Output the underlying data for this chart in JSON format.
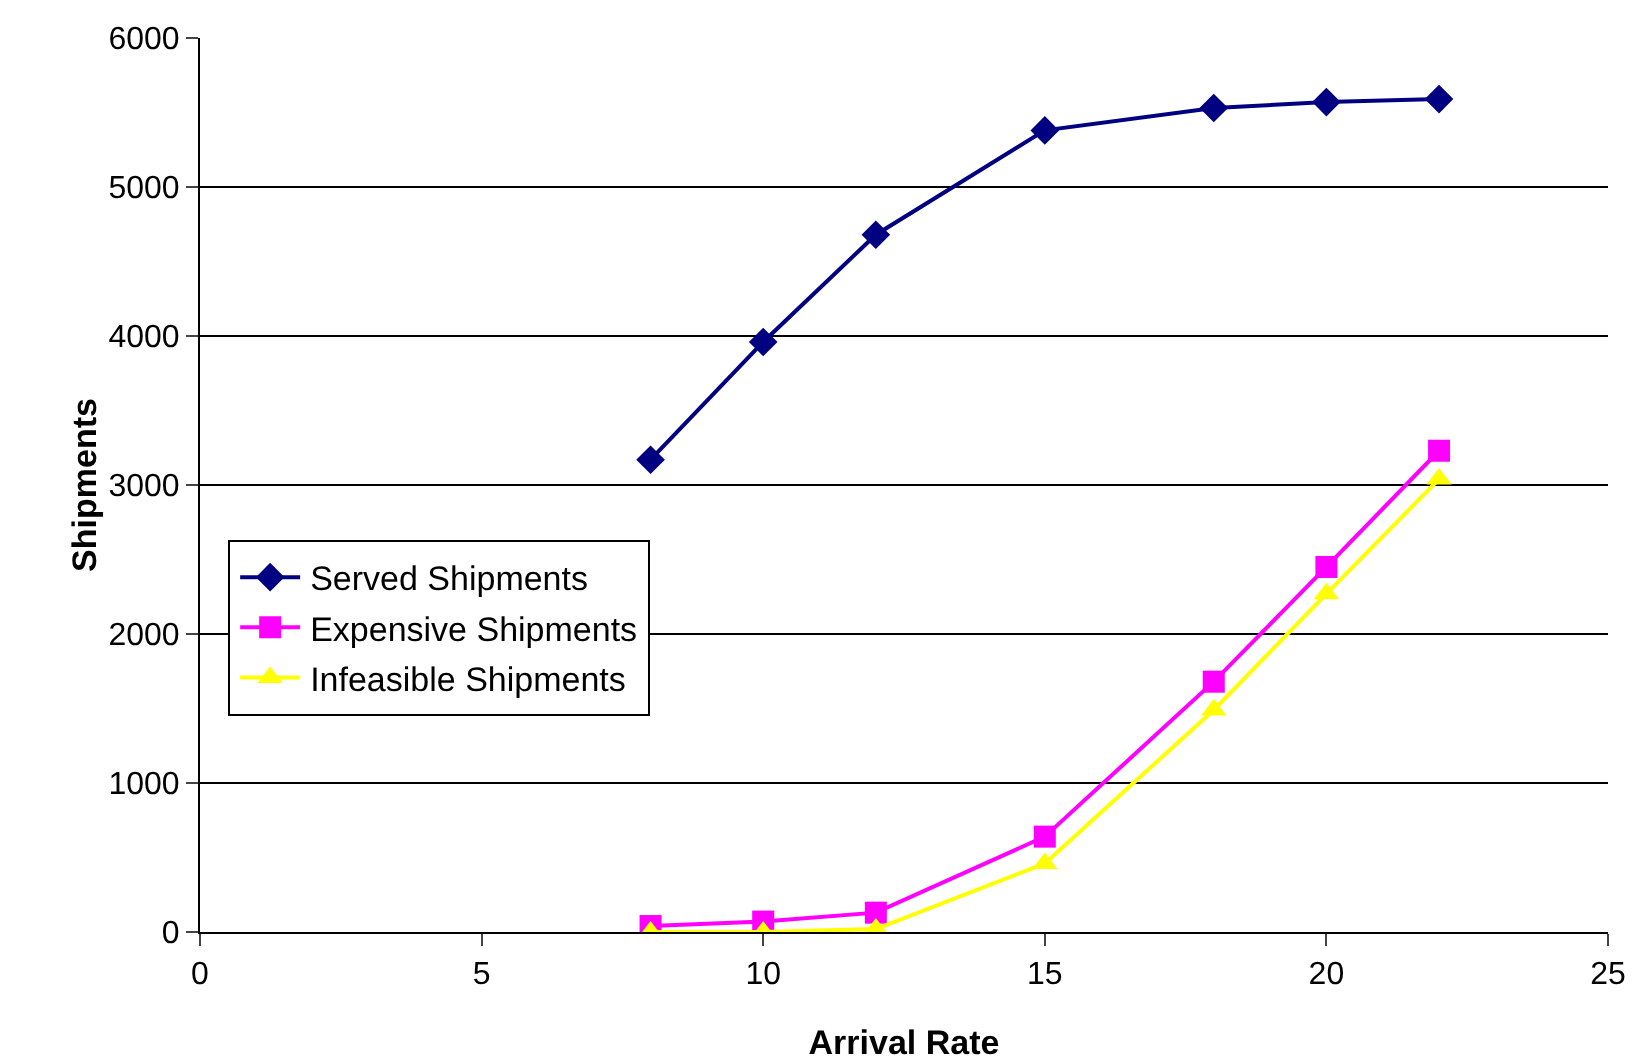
{
  "chart_data": {
    "type": "line",
    "xlabel": "Arrival Rate",
    "ylabel": "Shipments",
    "x": [
      8,
      10,
      12,
      15,
      18,
      20,
      22
    ],
    "series": [
      {
        "name": "Served Shipments",
        "color": "#000080",
        "marker": "diamond",
        "values": [
          3170,
          3960,
          4680,
          5380,
          5530,
          5570,
          5590
        ]
      },
      {
        "name": "Expensive Shipments",
        "color": "#ff00ff",
        "marker": "square",
        "values": [
          40,
          70,
          130,
          640,
          1680,
          2450,
          3230
        ]
      },
      {
        "name": "Infeasible Shipments",
        "color": "#ffff00",
        "marker": "triangle",
        "values": [
          0,
          0,
          20,
          460,
          1490,
          2270,
          3040
        ]
      }
    ],
    "xlim": [
      0,
      25
    ],
    "xticks": [
      0,
      5,
      10,
      15,
      20,
      25
    ],
    "ylim": [
      0,
      6000
    ],
    "yticks": [
      0,
      1000,
      2000,
      3000,
      4000,
      5000,
      6000
    ],
    "grid": "y",
    "legend": "left",
    "line_style": "solid"
  }
}
